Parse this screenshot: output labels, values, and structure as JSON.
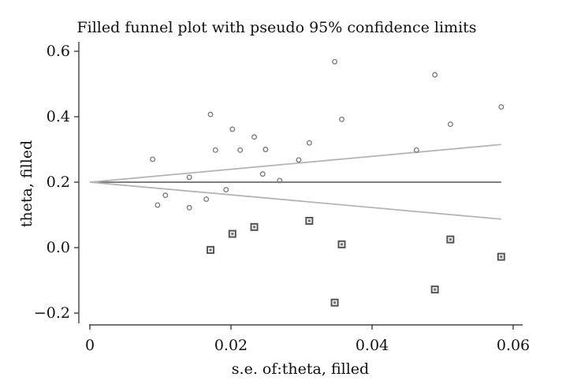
{
  "chart_data": {
    "type": "scatter",
    "title": "Filled funnel plot with pseudo 95% confidence limits",
    "xlabel": "s.e. of:theta, filled",
    "ylabel": "theta, filled",
    "xlim": [
      0,
      0.06
    ],
    "ylim": [
      -0.2,
      0.6
    ],
    "x_ticks": [
      {
        "value": 0,
        "label": "0"
      },
      {
        "value": 0.02,
        "label": "0.02"
      },
      {
        "value": 0.04,
        "label": "0.04"
      },
      {
        "value": 0.06,
        "label": "0.06"
      }
    ],
    "y_ticks": [
      {
        "value": -0.2,
        "label": "−0.2"
      },
      {
        "value": 0.0,
        "label": "0.0"
      },
      {
        "value": 0.2,
        "label": "0.2"
      },
      {
        "value": 0.4,
        "label": "0.4"
      },
      {
        "value": 0.6,
        "label": "0.6"
      }
    ],
    "pooled_estimate": 0.2,
    "ci_limits": {
      "se_max": 0.0583,
      "upper_at_se_max": 0.315,
      "lower_at_se_max": 0.087
    },
    "series": [
      {
        "marker": "circle",
        "points": [
          {
            "x": 0.0089,
            "y": 0.27
          },
          {
            "x": 0.0096,
            "y": 0.13
          },
          {
            "x": 0.0107,
            "y": 0.16
          },
          {
            "x": 0.0141,
            "y": 0.215
          },
          {
            "x": 0.0141,
            "y": 0.122
          },
          {
            "x": 0.0165,
            "y": 0.148
          },
          {
            "x": 0.0171,
            "y": 0.407
          },
          {
            "x": 0.0178,
            "y": 0.298
          },
          {
            "x": 0.0193,
            "y": 0.177
          },
          {
            "x": 0.0202,
            "y": 0.362
          },
          {
            "x": 0.0213,
            "y": 0.298
          },
          {
            "x": 0.0233,
            "y": 0.338
          },
          {
            "x": 0.0245,
            "y": 0.225
          },
          {
            "x": 0.0249,
            "y": 0.3
          },
          {
            "x": 0.0269,
            "y": 0.205
          },
          {
            "x": 0.0296,
            "y": 0.268
          },
          {
            "x": 0.0311,
            "y": 0.32
          },
          {
            "x": 0.0347,
            "y": 0.568
          },
          {
            "x": 0.0357,
            "y": 0.392
          },
          {
            "x": 0.0463,
            "y": 0.298
          },
          {
            "x": 0.0489,
            "y": 0.528
          },
          {
            "x": 0.0511,
            "y": 0.377
          },
          {
            "x": 0.0583,
            "y": 0.43
          }
        ]
      },
      {
        "marker": "square",
        "points": [
          {
            "x": 0.0171,
            "y": -0.007
          },
          {
            "x": 0.0202,
            "y": 0.042
          },
          {
            "x": 0.0233,
            "y": 0.063
          },
          {
            "x": 0.0311,
            "y": 0.082
          },
          {
            "x": 0.0347,
            "y": -0.168
          },
          {
            "x": 0.0357,
            "y": 0.01
          },
          {
            "x": 0.0489,
            "y": -0.128
          },
          {
            "x": 0.0511,
            "y": 0.025
          },
          {
            "x": 0.0583,
            "y": -0.028
          }
        ]
      }
    ]
  }
}
